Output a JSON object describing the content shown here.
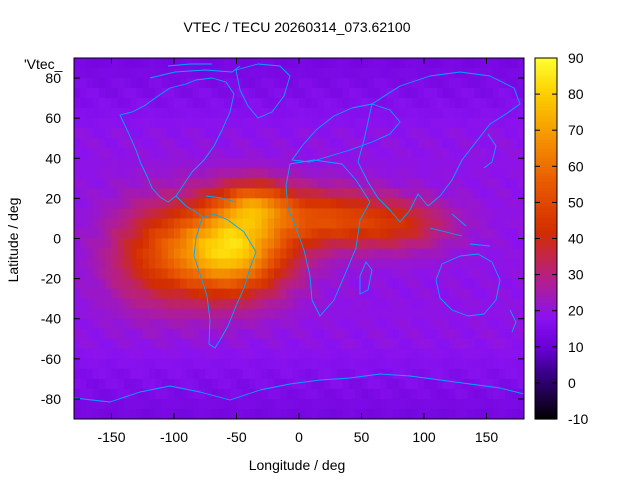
{
  "chart_data": {
    "type": "heatmap",
    "title": "VTEC / TECU 20260314_073.62100",
    "xlabel": "Longitude / deg",
    "ylabel": "Latitude / deg",
    "legend_label": "'Vtec_",
    "legend_placement": "top-left",
    "xlim": [
      -180,
      180
    ],
    "ylim": [
      -90,
      90
    ],
    "x_ticks": [
      -150,
      -100,
      -50,
      0,
      50,
      100,
      150
    ],
    "y_ticks": [
      -80,
      -60,
      -40,
      -20,
      0,
      20,
      40,
      60,
      80
    ],
    "colorbar": {
      "range": [
        -10,
        90
      ],
      "ticks": [
        -10,
        0,
        10,
        20,
        30,
        40,
        50,
        60,
        70,
        80,
        90
      ],
      "stops": [
        {
          "v": -10,
          "color": "#000000"
        },
        {
          "v": 3,
          "color": "#3a008a"
        },
        {
          "v": 10,
          "color": "#6a00d8"
        },
        {
          "v": 18,
          "color": "#8a12f0"
        },
        {
          "v": 30,
          "color": "#b8207e"
        },
        {
          "v": 42,
          "color": "#d22d00"
        },
        {
          "v": 55,
          "color": "#e85800"
        },
        {
          "v": 68,
          "color": "#f59300"
        },
        {
          "v": 80,
          "color": "#fcce00"
        },
        {
          "v": 90,
          "color": "#ffff30"
        }
      ]
    },
    "grid": {
      "resolution_deg": 5,
      "background_tec": 19,
      "features": [
        {
          "name": "south-american-main-crest",
          "lon": -55,
          "lat": -5,
          "sigma_lon": 32,
          "sigma_lat": 16,
          "peak": 62
        },
        {
          "name": "northern-crest",
          "lon": -35,
          "lat": 17,
          "sigma_lon": 20,
          "sigma_lat": 8,
          "peak": 28
        },
        {
          "name": "atlantic-africa-band",
          "lon": 20,
          "lat": 10,
          "sigma_lon": 32,
          "sigma_lat": 10,
          "peak": 28
        },
        {
          "name": "indian-ocean-band",
          "lon": 80,
          "lat": 7,
          "sigma_lon": 30,
          "sigma_lat": 9,
          "peak": 20
        },
        {
          "name": "eastern-pacific-wing",
          "lon": -115,
          "lat": -8,
          "sigma_lon": 28,
          "sigma_lat": 18,
          "peak": 22
        }
      ]
    },
    "coastline_color": "#00a8ff",
    "series": []
  }
}
